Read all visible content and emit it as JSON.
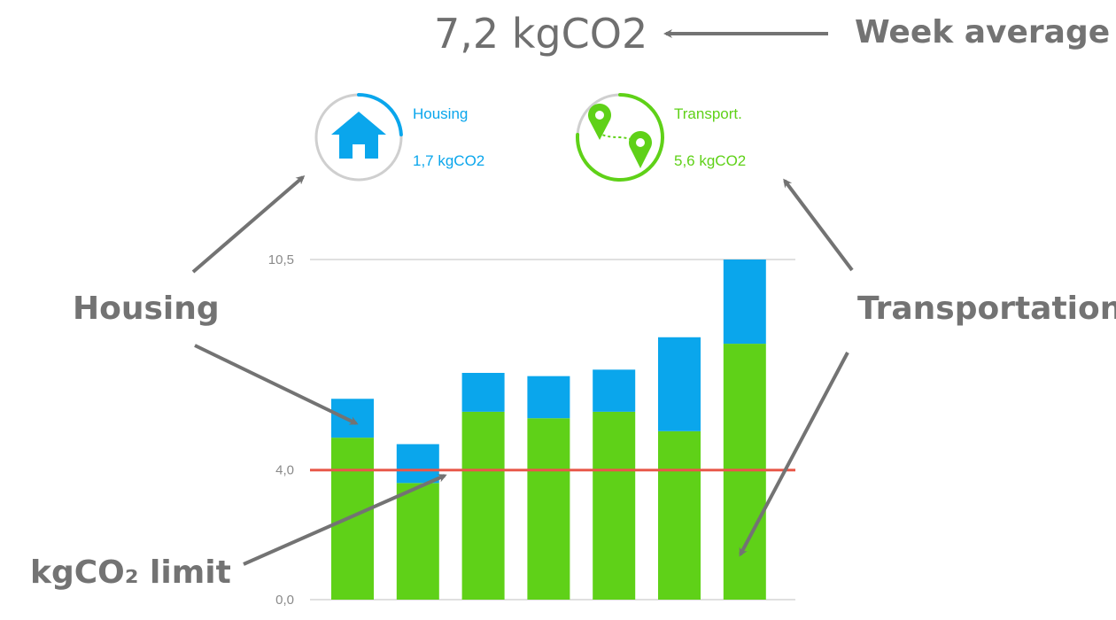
{
  "header": {
    "value": "7,2 kgCO2",
    "caption": "Week average"
  },
  "stats": [
    {
      "label": "Housing",
      "value": "1,7 kgCO2",
      "color": "#0aa6ec",
      "icon": "house-icon",
      "ring_fraction": 0.24
    },
    {
      "label": "Transport.",
      "value": "5,6 kgCO2",
      "color": "#5fd118",
      "icon": "map-pin-route-icon",
      "ring_fraction": 0.76
    }
  ],
  "annotations": {
    "housing": "Housing",
    "transportation": "Transportation",
    "limit": "kgCO₂ limit"
  },
  "colors": {
    "housing": "#0aa6ec",
    "transportation": "#5fd118",
    "limit_line": "#e8584a",
    "annotation": "#737373"
  },
  "chart_data": {
    "type": "bar",
    "stacked": true,
    "categories": [
      "",
      "",
      "",
      "",
      "",
      "",
      ""
    ],
    "series": [
      {
        "name": "Transportation",
        "values": [
          5.0,
          3.6,
          5.8,
          5.6,
          5.8,
          5.2,
          7.9
        ]
      },
      {
        "name": "Housing",
        "values": [
          1.2,
          1.2,
          1.2,
          1.3,
          1.3,
          2.9,
          2.6
        ]
      }
    ],
    "limit": 4.0,
    "ylim": [
      0,
      10.5
    ],
    "yticks": [
      "0,0",
      "4,0",
      "10,5"
    ],
    "yticks_values": [
      0,
      4.0,
      10.5
    ],
    "grid": true,
    "title": "",
    "xlabel": "",
    "ylabel": ""
  }
}
